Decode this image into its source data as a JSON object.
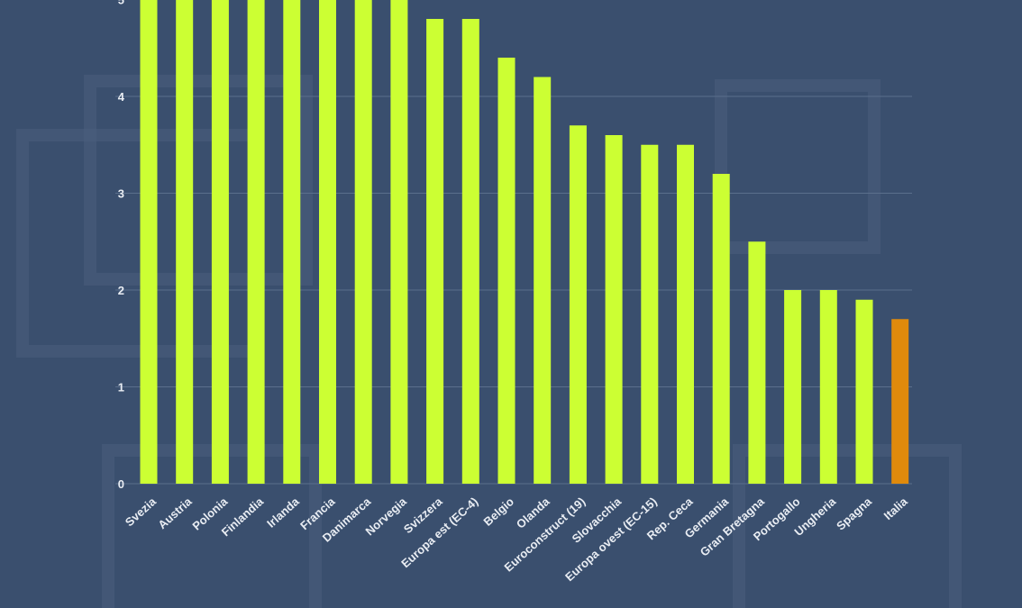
{
  "colors": {
    "background": "#3a4f6e",
    "bar": "#ccff33",
    "highlight": "#e08a0c",
    "grid": "#5b6f8c",
    "text": "#e9edf3"
  },
  "chart_data": {
    "type": "bar",
    "title": "",
    "xlabel": "",
    "ylabel": "",
    "ylim": [
      0,
      5
    ],
    "yticks": [
      0,
      1,
      2,
      3,
      4,
      5
    ],
    "grid": true,
    "highlight_category": "Italia",
    "categories": [
      "Svezia",
      "Austria",
      "Polonia",
      "Finlandia",
      "Irlanda",
      "Francia",
      "Danimarca",
      "Norvegia",
      "Svizzera",
      "Europa est (EC-4)",
      "Belgio",
      "Olanda",
      "Euroconstruct (19)",
      "Slovacchia",
      "Europa ovest (EC-15)",
      "Rep. Ceca",
      "Germania",
      "Gran Bretagna",
      "Portogallo",
      "Ungheria",
      "Spagna",
      "Italia"
    ],
    "values": [
      5.0,
      5.0,
      5.0,
      5.0,
      5.0,
      5.0,
      5.0,
      5.0,
      4.8,
      4.8,
      4.4,
      4.2,
      3.7,
      3.6,
      3.5,
      3.5,
      3.2,
      2.5,
      2.0,
      2.0,
      1.9,
      1.7
    ]
  }
}
